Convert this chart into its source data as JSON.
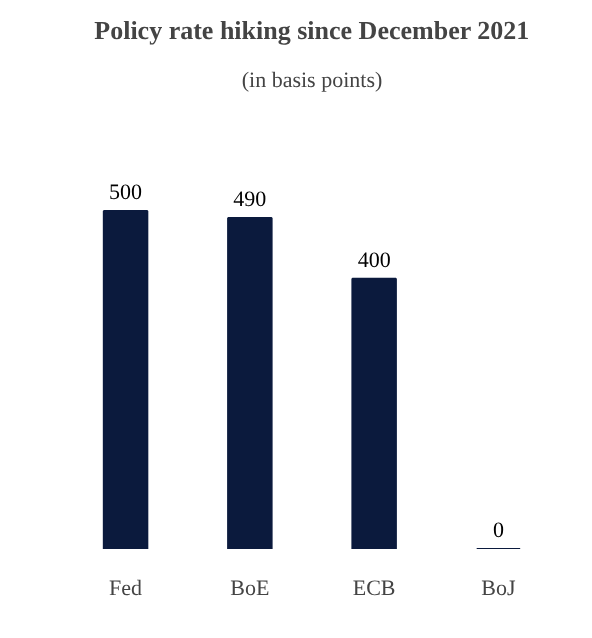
{
  "chart_data": {
    "type": "bar",
    "title": "Policy rate hiking since December 2021",
    "subtitle": "(in basis points)",
    "categories": [
      "Fed",
      "BoE",
      "ECB",
      "BoJ"
    ],
    "values": [
      500,
      490,
      400,
      0
    ],
    "color": "#0b1a3d",
    "data_labels": true,
    "grid": false
  }
}
